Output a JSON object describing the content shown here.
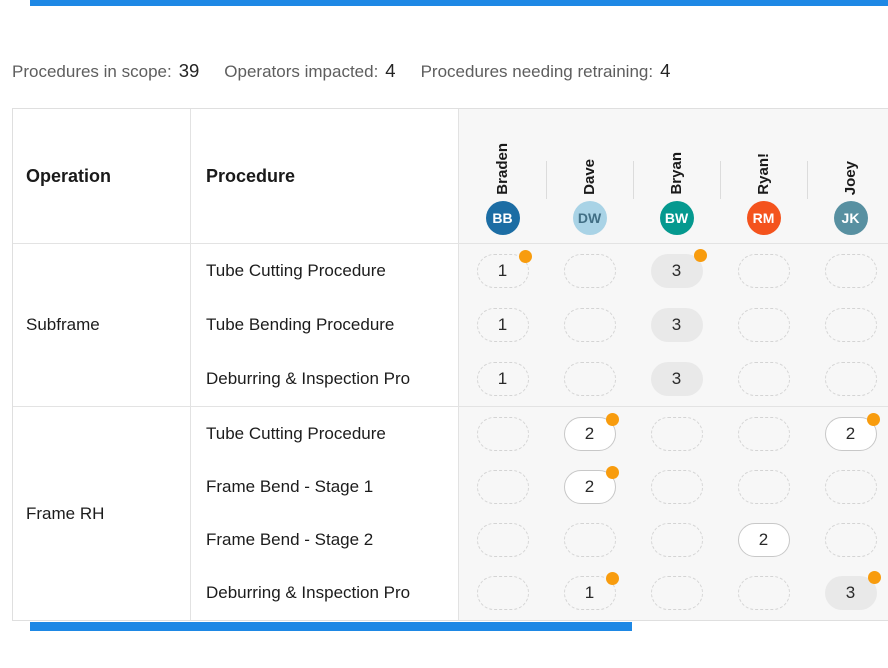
{
  "accent": {
    "bar_color": "#1e88e5",
    "retraining_dot_color": "#f89c0e"
  },
  "stats": [
    {
      "label": "Procedures in scope:",
      "value": "39"
    },
    {
      "label": "Operators impacted:",
      "value": "4"
    },
    {
      "label": "Procedures needing retraining:",
      "value": "4"
    }
  ],
  "table": {
    "col_headers": {
      "operation": "Operation",
      "procedure": "Procedure"
    },
    "operators": [
      {
        "name": "Braden",
        "initials": "BB",
        "color": "#1c6da4",
        "text_color": "#ffffff"
      },
      {
        "name": "Dave",
        "initials": "DW",
        "color": "#a9d3e6",
        "text_color": "#416f85"
      },
      {
        "name": "Bryan",
        "initials": "BW",
        "color": "#05998f",
        "text_color": "#ffffff"
      },
      {
        "name": "Ryan!",
        "initials": "RM",
        "color": "#f4531d",
        "text_color": "#ffffff"
      },
      {
        "name": "Joey",
        "initials": "JK",
        "color": "#5890a1",
        "text_color": "#ffffff"
      }
    ],
    "groups": [
      {
        "operation": "Subframe",
        "rows": [
          {
            "procedure": "Tube Cutting Procedure",
            "cells": [
              {
                "style": "dashed",
                "value": "1",
                "dot": true
              },
              {
                "style": "dashed",
                "value": "",
                "dot": false
              },
              {
                "style": "filled",
                "value": "3",
                "dot": true
              },
              {
                "style": "dashed",
                "value": "",
                "dot": false
              },
              {
                "style": "dashed",
                "value": "",
                "dot": false
              }
            ]
          },
          {
            "procedure": "Tube Bending Procedure",
            "cells": [
              {
                "style": "dashed",
                "value": "1",
                "dot": false
              },
              {
                "style": "dashed",
                "value": "",
                "dot": false
              },
              {
                "style": "filled",
                "value": "3",
                "dot": false
              },
              {
                "style": "dashed",
                "value": "",
                "dot": false
              },
              {
                "style": "dashed",
                "value": "",
                "dot": false
              }
            ]
          },
          {
            "procedure": "Deburring & Inspection Pro",
            "cells": [
              {
                "style": "dashed",
                "value": "1",
                "dot": false
              },
              {
                "style": "dashed",
                "value": "",
                "dot": false
              },
              {
                "style": "filled",
                "value": "3",
                "dot": false
              },
              {
                "style": "dashed",
                "value": "",
                "dot": false
              },
              {
                "style": "dashed",
                "value": "",
                "dot": false
              }
            ]
          }
        ]
      },
      {
        "operation": "Frame RH",
        "rows": [
          {
            "procedure": "Tube Cutting Procedure",
            "cells": [
              {
                "style": "dashed",
                "value": "",
                "dot": false
              },
              {
                "style": "outlined",
                "value": "2",
                "dot": true
              },
              {
                "style": "dashed",
                "value": "",
                "dot": false
              },
              {
                "style": "dashed",
                "value": "",
                "dot": false
              },
              {
                "style": "outlined",
                "value": "2",
                "dot": true
              }
            ]
          },
          {
            "procedure": "Frame Bend - Stage 1",
            "cells": [
              {
                "style": "dashed",
                "value": "",
                "dot": false
              },
              {
                "style": "outlined",
                "value": "2",
                "dot": true
              },
              {
                "style": "dashed",
                "value": "",
                "dot": false
              },
              {
                "style": "dashed",
                "value": "",
                "dot": false
              },
              {
                "style": "dashed",
                "value": "",
                "dot": false
              }
            ]
          },
          {
            "procedure": "Frame Bend - Stage 2",
            "cells": [
              {
                "style": "dashed",
                "value": "",
                "dot": false
              },
              {
                "style": "dashed",
                "value": "",
                "dot": false
              },
              {
                "style": "dashed",
                "value": "",
                "dot": false
              },
              {
                "style": "outlined",
                "value": "2",
                "dot": false
              },
              {
                "style": "dashed",
                "value": "",
                "dot": false
              }
            ]
          },
          {
            "procedure": "Deburring & Inspection Pro",
            "cells": [
              {
                "style": "dashed",
                "value": "",
                "dot": false
              },
              {
                "style": "dashed",
                "value": "1",
                "dot": true
              },
              {
                "style": "dashed",
                "value": "",
                "dot": false
              },
              {
                "style": "dashed",
                "value": "",
                "dot": false
              },
              {
                "style": "filled",
                "value": "3",
                "dot": true
              }
            ]
          }
        ]
      }
    ]
  }
}
